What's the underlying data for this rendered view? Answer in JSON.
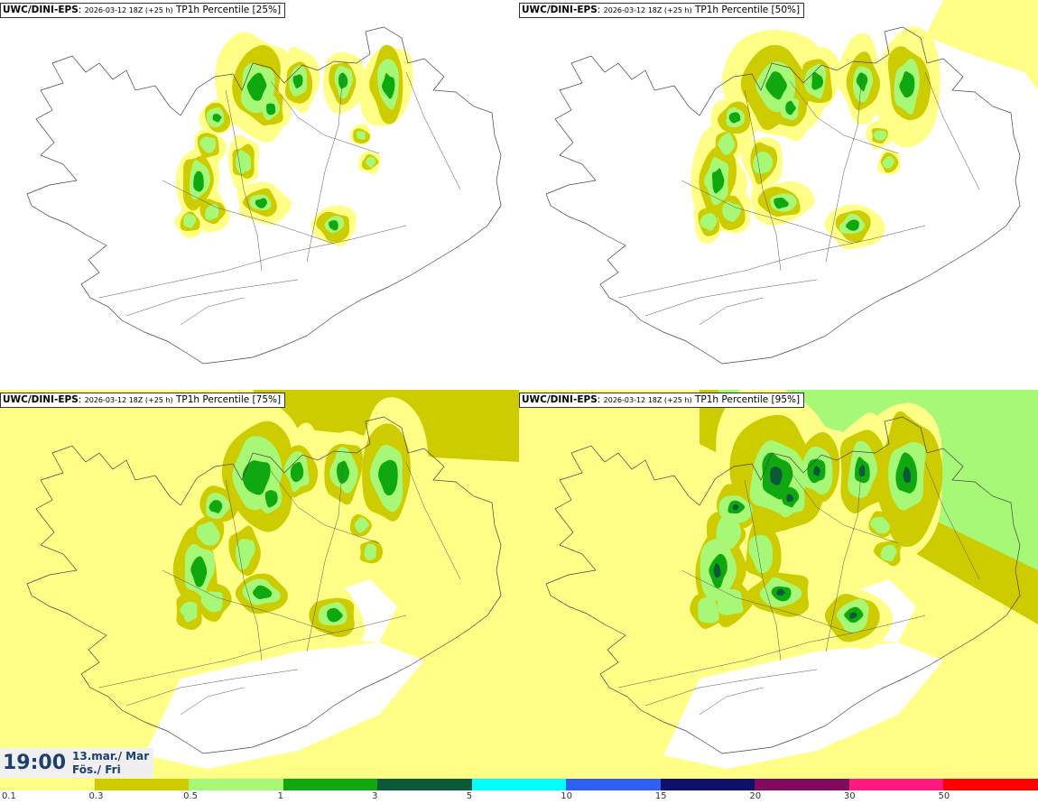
{
  "panels": [
    {
      "model": "UWC/DINI-EPS",
      "run": "2026-03-12 18Z (+25 h)",
      "label": "TP1h Percentile [25%]"
    },
    {
      "model": "UWC/DINI-EPS",
      "run": "2026-03-12 18Z (+25 h)",
      "label": "TP1h Percentile [50%]"
    },
    {
      "model": "UWC/DINI-EPS",
      "run": "2026-03-12 18Z (+25 h)",
      "label": "TP1h Percentile [75%]"
    },
    {
      "model": "UWC/DINI-EPS",
      "run": "2026-03-12 18Z (+25 h)",
      "label": "TP1h Percentile [95%]"
    }
  ],
  "time": {
    "hour": "19:00",
    "date": "13.mar./ Mar",
    "weekday": "Fös./ Fri"
  },
  "legend": {
    "colors": [
      "#ffff88",
      "#cccc00",
      "#a8f878",
      "#10a810",
      "#0a5a3a",
      "#00ffff",
      "#3060f0",
      "#10106a",
      "#800a60",
      "#ff1a80",
      "#ff0000"
    ],
    "ticks": [
      "0.1",
      "0.3",
      "0.5",
      "1",
      "3",
      "5",
      "10",
      "15",
      "20",
      "30",
      "50"
    ]
  }
}
